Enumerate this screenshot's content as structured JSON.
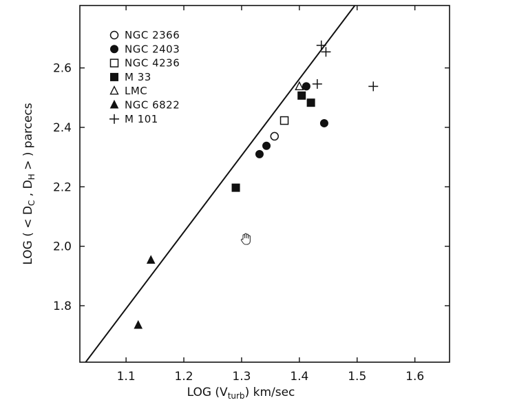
{
  "chart_data": {
    "type": "scatter",
    "title": "",
    "xlabel": {
      "prefix": "LOG (V",
      "sub": "turb",
      "suffix": ")  km/sec"
    },
    "ylabel": {
      "p1": "LOG ( < D",
      "s1": "C",
      "p2": " , D",
      "s2": "H",
      "p3": " > )  parcecs"
    },
    "xlim": [
      1.02,
      1.66
    ],
    "ylim": [
      1.61,
      2.81
    ],
    "xticks": [
      1.1,
      1.2,
      1.3,
      1.4,
      1.5,
      1.6
    ],
    "xtick_labels": [
      "1.1",
      "1.2",
      "1.3",
      "1.4",
      "1.5",
      "1.6"
    ],
    "yticks": [
      1.8,
      2.0,
      2.2,
      2.4,
      2.6
    ],
    "ytick_labels": [
      "1.8",
      "2.0",
      "2.2",
      "2.4",
      "2.6"
    ],
    "grid": false,
    "legend_position": "top-left",
    "series": [
      {
        "name": "NGC  2366",
        "marker": "open-circle",
        "points": [
          [
            1.357,
            2.37
          ]
        ]
      },
      {
        "name": "NGC  2403",
        "marker": "filled-circle",
        "points": [
          [
            1.331,
            2.31
          ],
          [
            1.343,
            2.338
          ],
          [
            1.412,
            2.538
          ],
          [
            1.443,
            2.414
          ]
        ]
      },
      {
        "name": "NGC  4236",
        "marker": "open-square",
        "points": [
          [
            1.374,
            2.423
          ]
        ]
      },
      {
        "name": "M  33",
        "marker": "filled-square",
        "points": [
          [
            1.29,
            2.197
          ],
          [
            1.404,
            2.507
          ],
          [
            1.42,
            2.483
          ]
        ]
      },
      {
        "name": "LMC",
        "marker": "open-triangle",
        "points": [
          [
            1.4,
            2.537
          ]
        ]
      },
      {
        "name": "NGC  6822",
        "marker": "filled-triangle",
        "points": [
          [
            1.143,
            1.953
          ],
          [
            1.121,
            1.734
          ]
        ]
      },
      {
        "name": "M  101",
        "marker": "plus",
        "points": [
          [
            1.438,
            2.676
          ],
          [
            1.446,
            2.654
          ],
          [
            1.431,
            2.546
          ],
          [
            1.528,
            2.538
          ]
        ]
      }
    ],
    "fit_line": {
      "points": [
        [
          1.03,
          1.61
        ],
        [
          1.496,
          2.81
        ]
      ]
    },
    "annotation_icon": "hand-cursor-icon"
  }
}
